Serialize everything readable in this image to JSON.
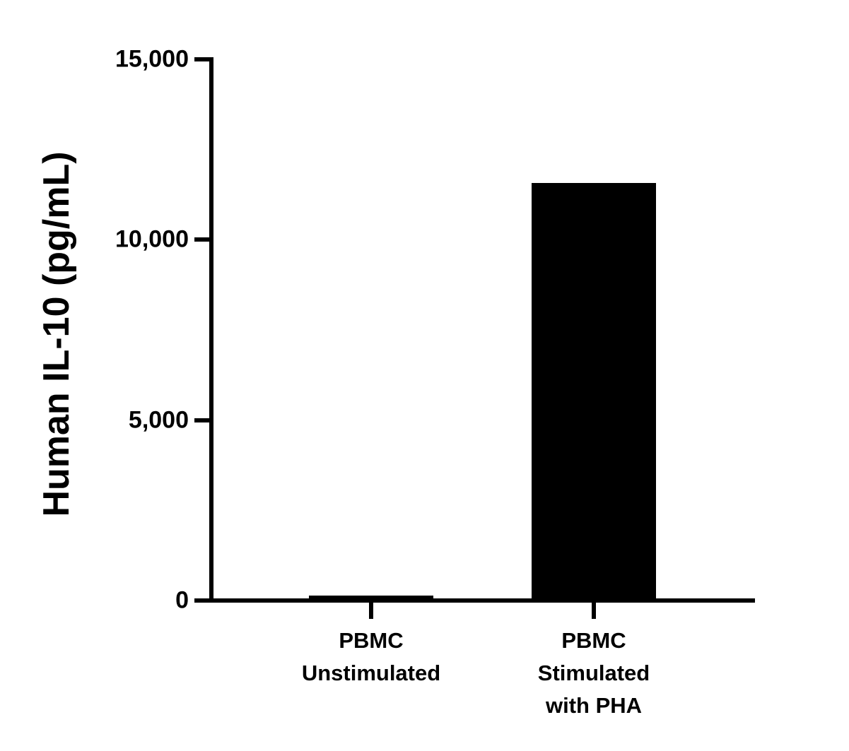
{
  "chart_data": {
    "type": "bar",
    "title": "",
    "ylabel": "Human IL-10 (pg/mL)",
    "xlabel": "",
    "ylim": [
      0,
      15000
    ],
    "yticks": [
      {
        "value": 0,
        "label": "0"
      },
      {
        "value": 5000,
        "label": "5,000"
      },
      {
        "value": 10000,
        "label": "10,000"
      },
      {
        "value": 15000,
        "label": "15,000"
      }
    ],
    "categories": [
      "PBMC Unstimulated",
      "PBMC Stimulated with PHA"
    ],
    "category_label_lines": [
      [
        "PBMC",
        "Unstimulated"
      ],
      [
        "PBMC",
        "Stimulated",
        "with PHA"
      ]
    ],
    "values": [
      137,
      11570
    ],
    "bar_color": "#000000",
    "axis_color": "#000000",
    "background_color": "#ffffff",
    "grid": false,
    "legend": "none"
  }
}
